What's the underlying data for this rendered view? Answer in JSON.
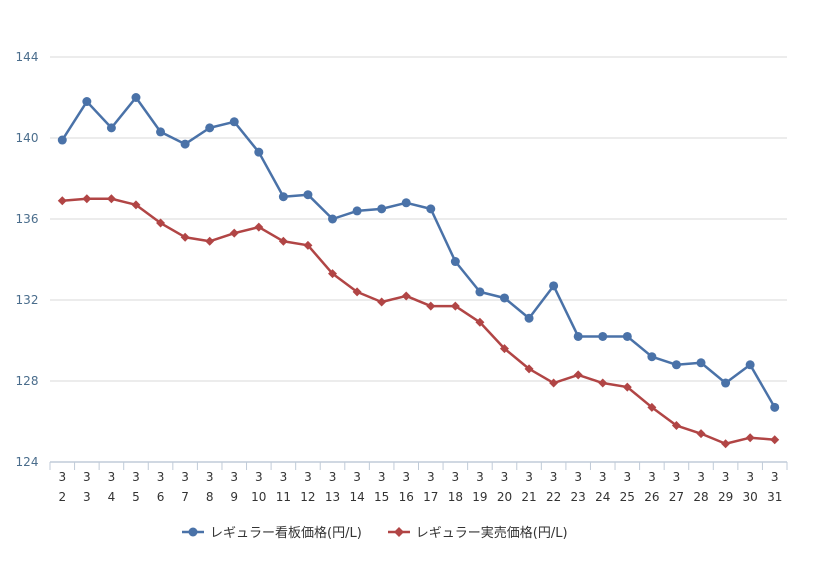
{
  "chart_data": {
    "type": "line",
    "title": "",
    "xlabel": "",
    "ylabel": "",
    "categories": [
      [
        "3",
        "2"
      ],
      [
        "3",
        "3"
      ],
      [
        "3",
        "4"
      ],
      [
        "3",
        "5"
      ],
      [
        "3",
        "6"
      ],
      [
        "3",
        "7"
      ],
      [
        "3",
        "8"
      ],
      [
        "3",
        "9"
      ],
      [
        "3",
        "10"
      ],
      [
        "3",
        "11"
      ],
      [
        "3",
        "12"
      ],
      [
        "3",
        "13"
      ],
      [
        "3",
        "14"
      ],
      [
        "3",
        "15"
      ],
      [
        "3",
        "16"
      ],
      [
        "3",
        "17"
      ],
      [
        "3",
        "18"
      ],
      [
        "3",
        "19"
      ],
      [
        "3",
        "20"
      ],
      [
        "3",
        "21"
      ],
      [
        "3",
        "22"
      ],
      [
        "3",
        "23"
      ],
      [
        "3",
        "24"
      ],
      [
        "3",
        "25"
      ],
      [
        "3",
        "26"
      ],
      [
        "3",
        "27"
      ],
      [
        "3",
        "28"
      ],
      [
        "3",
        "29"
      ],
      [
        "3",
        "30"
      ],
      [
        "3",
        "31"
      ]
    ],
    "ylim": [
      124,
      144
    ],
    "yticks": [
      "124",
      "128",
      "132",
      "136",
      "140",
      "144"
    ],
    "grid": true,
    "legend_position": "bottom",
    "series": [
      {
        "name": "レギュラー看板価格(円/L)",
        "color": "#4a72a8",
        "marker": "circle",
        "values": [
          139.9,
          141.8,
          140.5,
          142.0,
          140.3,
          139.7,
          140.5,
          140.8,
          139.3,
          137.1,
          137.2,
          136.0,
          136.4,
          136.5,
          136.8,
          136.5,
          133.9,
          132.4,
          132.1,
          131.1,
          132.7,
          130.2,
          130.2,
          130.2,
          129.2,
          128.8,
          128.9,
          127.9,
          128.8,
          126.7
        ]
      },
      {
        "name": "レギュラー実売価格(円/L)",
        "color": "#b14545",
        "marker": "diamond",
        "values": [
          136.9,
          137.0,
          137.0,
          136.7,
          135.8,
          135.1,
          134.9,
          135.3,
          135.6,
          134.9,
          134.7,
          133.3,
          132.4,
          131.9,
          132.2,
          131.7,
          131.7,
          130.9,
          129.6,
          128.6,
          127.9,
          128.3,
          127.9,
          127.7,
          126.7,
          125.8,
          125.4,
          124.9,
          125.2,
          125.1
        ]
      }
    ]
  }
}
